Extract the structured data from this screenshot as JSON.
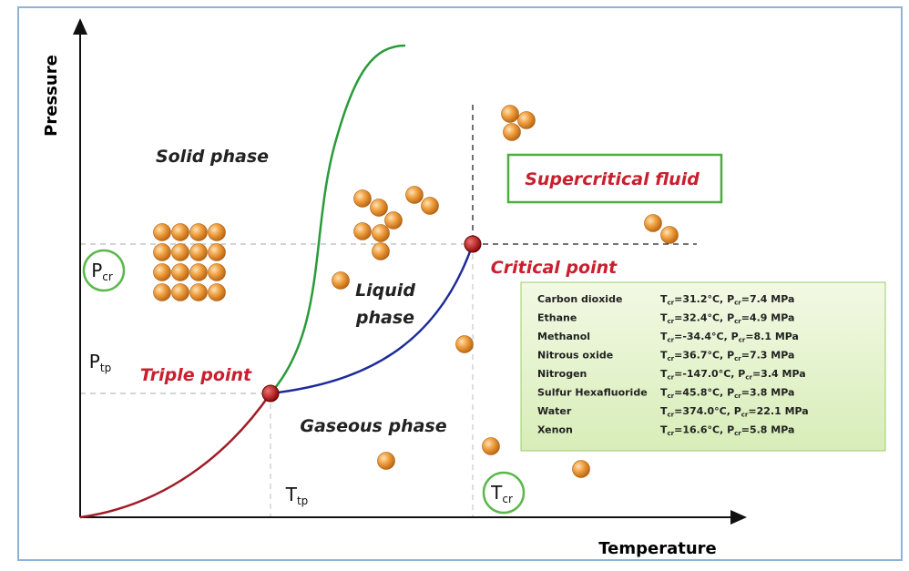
{
  "axes": {
    "y_label": "Pressure",
    "x_label": "Temperature"
  },
  "symbols": {
    "t": "T",
    "p": "P",
    "cr": "cr",
    "tp": "tp"
  },
  "phases": {
    "solid": "Solid phase",
    "liquid": [
      "Liquid",
      "phase"
    ],
    "gas": "Gaseous phase",
    "supercritical": "Supercritical fluid"
  },
  "points": {
    "triple": "Triple point",
    "critical": "Critical point"
  },
  "table": {
    "rows": [
      {
        "name": "Carbon dioxide",
        "t": "=31.2°C, ",
        "p": "=7.4 MPa"
      },
      {
        "name": "Ethane",
        "t": "=32.4°C, ",
        "p": "=4.9 MPa"
      },
      {
        "name": "Methanol",
        "t": "=-34.4°C, ",
        "p": "=8.1 MPa"
      },
      {
        "name": "Nitrous oxide",
        "t": "=36.7°C, ",
        "p": "=7.3 MPa"
      },
      {
        "name": "Nitrogen",
        "t": "=-147.0°C, ",
        "p": "=3.4 MPa"
      },
      {
        "name": "Sulfur Hexafluoride",
        "t": "=45.8°C, ",
        "p": "=3.8 MPa"
      },
      {
        "name": "Water",
        "t": "=374.0°C, ",
        "p": "=22.1 MPa"
      },
      {
        "name": "Xenon",
        "t": "=16.6°C, ",
        "p": "=5.8 MPa"
      }
    ]
  }
}
